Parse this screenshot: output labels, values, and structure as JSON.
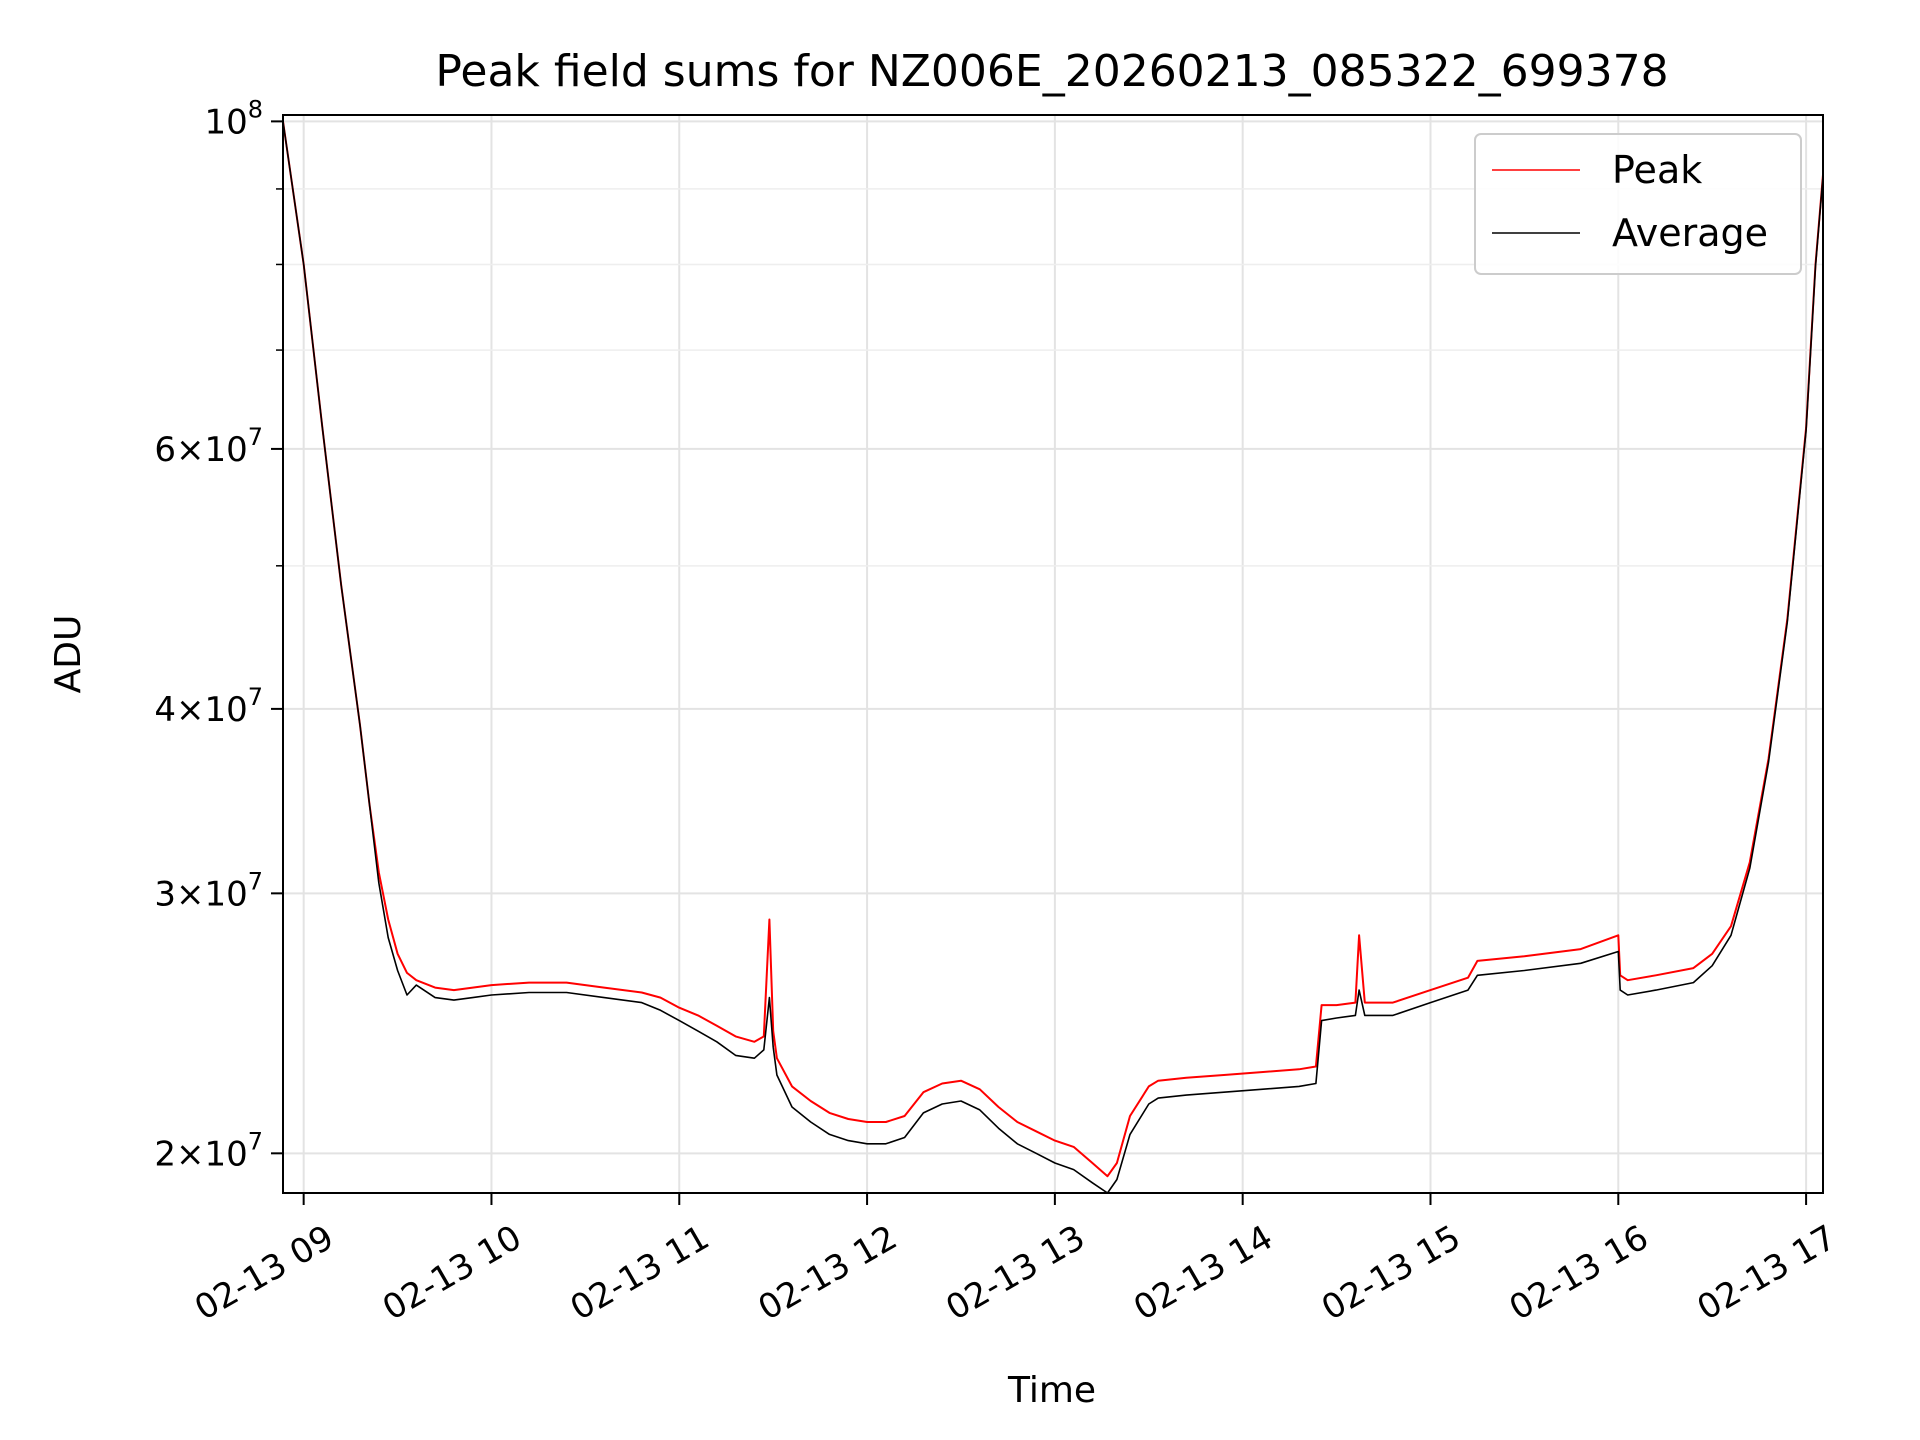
{
  "chart_data": {
    "type": "line",
    "title": "Peak field sums for NZ006E_20260213_085322_699378",
    "xlabel": "Time",
    "ylabel": "ADU",
    "yscale": "log",
    "ylim": [
      18800000,
      101000000
    ],
    "xlim": [
      8.89,
      17.09
    ],
    "grid": true,
    "legend_position": "top-right",
    "x_ticks": [
      9,
      10,
      11,
      12,
      13,
      14,
      15,
      16,
      17
    ],
    "x_tick_labels": [
      "02-13 09",
      "02-13 10",
      "02-13 11",
      "02-13 12",
      "02-13 13",
      "02-13 14",
      "02-13 15",
      "02-13 16",
      "02-13 17"
    ],
    "y_major_ticks": [
      {
        "value": 100000000,
        "base": "10",
        "exp": "8"
      },
      {
        "value": 60000000,
        "mant": "6",
        "base": "10",
        "exp": "7"
      },
      {
        "value": 40000000,
        "mant": "4",
        "base": "10",
        "exp": "7"
      },
      {
        "value": 30000000,
        "mant": "3",
        "base": "10",
        "exp": "7"
      },
      {
        "value": 20000000,
        "mant": "2",
        "base": "10",
        "exp": "7"
      }
    ],
    "y_minor_ticks": [
      90000000,
      80000000,
      70000000,
      50000000
    ],
    "series": [
      {
        "name": "Peak",
        "color": "#ff0000",
        "x": [
          8.89,
          9.0,
          9.1,
          9.2,
          9.3,
          9.35,
          9.4,
          9.45,
          9.5,
          9.55,
          9.6,
          9.7,
          9.8,
          9.9,
          10.0,
          10.2,
          10.4,
          10.6,
          10.8,
          10.9,
          11.0,
          11.1,
          11.2,
          11.3,
          11.4,
          11.45,
          11.48,
          11.5,
          11.52,
          11.6,
          11.7,
          11.8,
          11.9,
          12.0,
          12.1,
          12.2,
          12.3,
          12.4,
          12.5,
          12.6,
          12.7,
          12.8,
          12.9,
          13.0,
          13.1,
          13.2,
          13.28,
          13.33,
          13.4,
          13.5,
          13.55,
          13.7,
          13.9,
          14.1,
          14.3,
          14.39,
          14.42,
          14.5,
          14.6,
          14.62,
          14.65,
          14.8,
          15.0,
          15.2,
          15.25,
          15.5,
          15.8,
          16.0,
          16.01,
          16.05,
          16.2,
          16.4,
          16.5,
          16.6,
          16.7,
          16.8,
          16.9,
          17.0,
          17.05,
          17.09
        ],
        "y": [
          100000000,
          80000000,
          62000000,
          48500000,
          39000000,
          34500000,
          31000000,
          28800000,
          27300000,
          26500000,
          26200000,
          25900000,
          25800000,
          25900000,
          26000000,
          26100000,
          26100000,
          25900000,
          25700000,
          25500000,
          25100000,
          24800000,
          24400000,
          24000000,
          23800000,
          24000000,
          28800000,
          24200000,
          23200000,
          22200000,
          21700000,
          21300000,
          21100000,
          21000000,
          21000000,
          21200000,
          22000000,
          22300000,
          22400000,
          22100000,
          21500000,
          21000000,
          20700000,
          20400000,
          20200000,
          19700000,
          19300000,
          19700000,
          21200000,
          22200000,
          22400000,
          22500000,
          22600000,
          22700000,
          22800000,
          22900000,
          25200000,
          25200000,
          25300000,
          28100000,
          25300000,
          25300000,
          25800000,
          26300000,
          27000000,
          27200000,
          27500000,
          28100000,
          26400000,
          26200000,
          26400000,
          26700000,
          27300000,
          28500000,
          31500000,
          37000000,
          46000000,
          62000000,
          80000000,
          92000000
        ]
      },
      {
        "name": "Average",
        "color": "#000000",
        "x": [
          8.89,
          9.0,
          9.1,
          9.2,
          9.3,
          9.35,
          9.4,
          9.45,
          9.5,
          9.55,
          9.6,
          9.7,
          9.8,
          9.9,
          10.0,
          10.2,
          10.4,
          10.6,
          10.8,
          10.9,
          11.0,
          11.1,
          11.2,
          11.3,
          11.4,
          11.45,
          11.48,
          11.5,
          11.52,
          11.6,
          11.7,
          11.8,
          11.9,
          12.0,
          12.1,
          12.2,
          12.3,
          12.4,
          12.5,
          12.6,
          12.7,
          12.8,
          12.9,
          13.0,
          13.1,
          13.2,
          13.28,
          13.33,
          13.4,
          13.5,
          13.55,
          13.7,
          13.9,
          14.1,
          14.3,
          14.39,
          14.42,
          14.5,
          14.6,
          14.62,
          14.65,
          14.8,
          15.0,
          15.2,
          15.25,
          15.5,
          15.8,
          16.0,
          16.01,
          16.05,
          16.2,
          16.4,
          16.5,
          16.6,
          16.7,
          16.8,
          16.9,
          17.0,
          17.05,
          17.09
        ],
        "y": [
          100000000,
          80000000,
          62000000,
          48500000,
          39000000,
          34500000,
          30500000,
          28000000,
          26600000,
          25600000,
          26000000,
          25500000,
          25400000,
          25500000,
          25600000,
          25700000,
          25700000,
          25500000,
          25300000,
          25000000,
          24600000,
          24200000,
          23800000,
          23300000,
          23200000,
          23500000,
          25500000,
          23600000,
          22600000,
          21500000,
          21000000,
          20600000,
          20400000,
          20300000,
          20300000,
          20500000,
          21300000,
          21600000,
          21700000,
          21400000,
          20800000,
          20300000,
          20000000,
          19700000,
          19500000,
          19100000,
          18800000,
          19200000,
          20600000,
          21600000,
          21800000,
          21900000,
          22000000,
          22100000,
          22200000,
          22300000,
          24600000,
          24700000,
          24800000,
          25800000,
          24800000,
          24800000,
          25300000,
          25800000,
          26400000,
          26600000,
          26900000,
          27400000,
          25800000,
          25600000,
          25800000,
          26100000,
          26800000,
          28100000,
          31200000,
          36800000,
          45800000,
          61800000,
          79800000,
          91800000
        ]
      }
    ]
  }
}
